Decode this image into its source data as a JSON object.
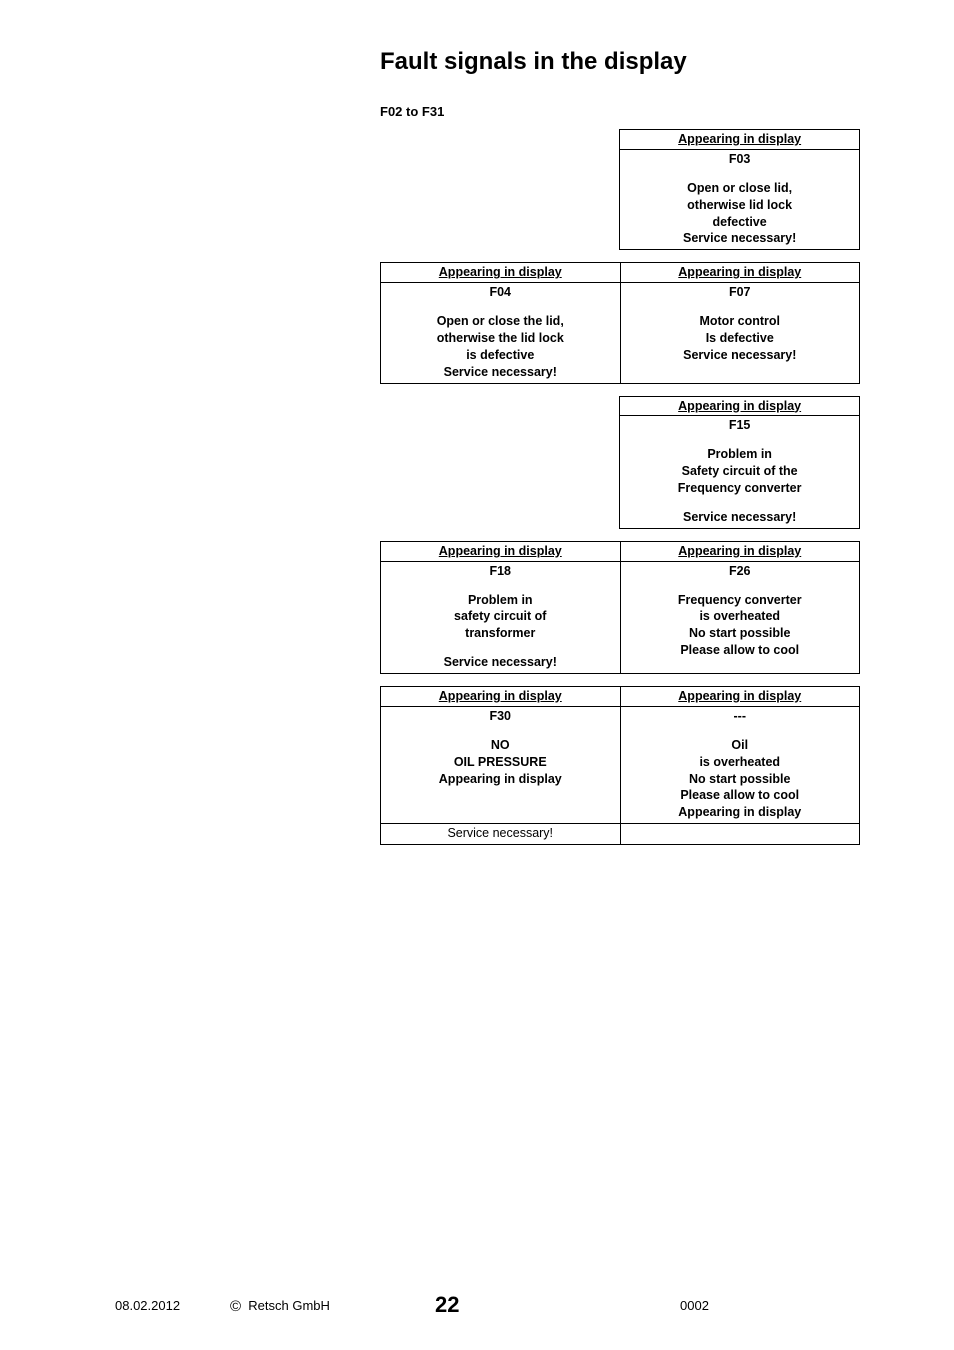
{
  "title": "Fault signals in the display",
  "range_label": "F02 to F31",
  "header_label": "Appearing in display",
  "tables": {
    "t1": {
      "right": {
        "code": "F03",
        "lines": [
          "Open or close lid,",
          "otherwise lid lock",
          "defective",
          "Service necessary!"
        ]
      }
    },
    "t2": {
      "left": {
        "code": "F04",
        "lines": [
          "Open or close the lid,",
          "otherwise the lid lock",
          "is defective",
          "Service necessary!"
        ]
      },
      "right": {
        "code": "F07",
        "lines": [
          "Motor control",
          "Is defective",
          "",
          "Service necessary!"
        ]
      }
    },
    "t3": {
      "right": {
        "code": "F15",
        "lines": [
          "Problem in",
          "Safety circuit of the",
          "Frequency converter",
          "",
          "Service necessary!"
        ]
      }
    },
    "t4": {
      "left": {
        "code": "F18",
        "lines": [
          "Problem in",
          "safety circuit of",
          "transformer",
          "",
          "Service necessary!"
        ]
      },
      "right": {
        "code": "F26",
        "lines": [
          "Frequency converter",
          "is overheated",
          "No start possible",
          "Please allow to cool"
        ]
      }
    },
    "t5": {
      "left": {
        "code": "F30",
        "lines": [
          "NO",
          "OIL PRESSURE",
          "Appearing in display"
        ],
        "footer_plain": "Service necessary!"
      },
      "right": {
        "code": "---",
        "lines": [
          "Oil",
          "is overheated",
          "No start possible",
          "Please allow to cool",
          "Appearing in display"
        ]
      }
    }
  },
  "footer": {
    "date": "08.02.2012",
    "copyright_symbol": "©",
    "company": "Retsch GmbH",
    "page": "22",
    "docnum": "0002"
  }
}
